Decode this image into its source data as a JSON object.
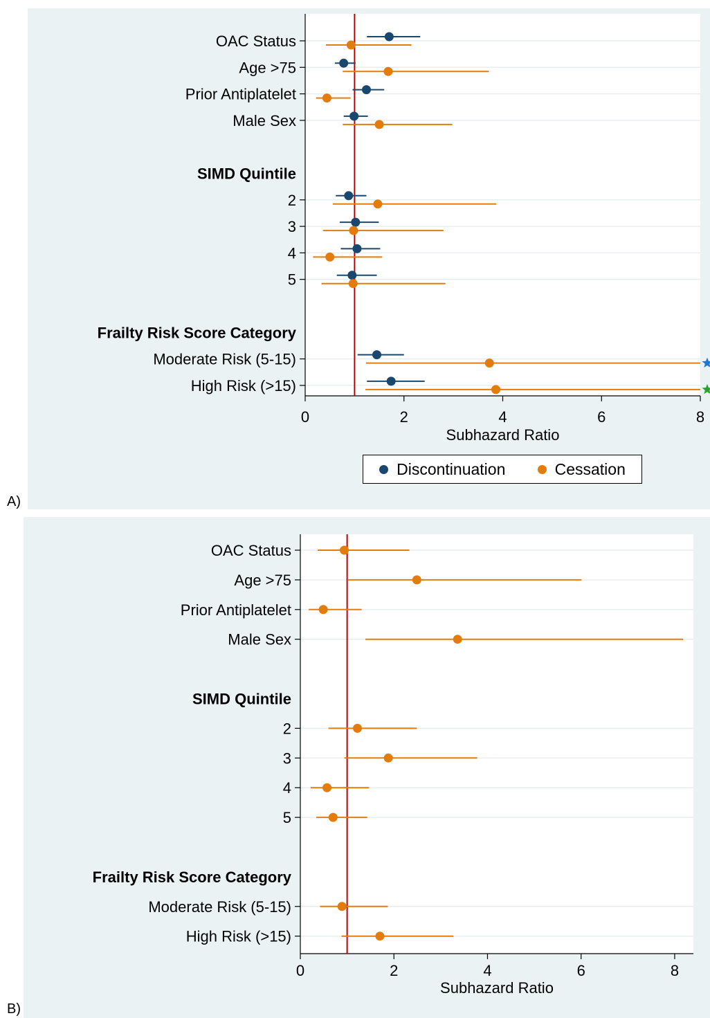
{
  "panels": [
    {
      "panel_label": "A)",
      "legend": {
        "items": [
          {
            "name": "Discontinuation",
            "color": "#1a476f"
          },
          {
            "name": "Cessation",
            "color": "#e37c0c"
          }
        ]
      }
    },
    {
      "panel_label": "B)"
    }
  ],
  "colors": {
    "discontinuation": "#1a476f",
    "cessation": "#e37c0c",
    "reference_line": "#c00000",
    "panel_bg": "#eaf2f3",
    "plot_bg": "#ffffff",
    "star_blue": "#1f77d4",
    "star_green": "#2ca02c"
  },
  "chart_data": [
    {
      "type": "forest",
      "panel": "A)",
      "xlabel": "Subhazard Ratio",
      "ylabel": "",
      "title": "",
      "xlim": [
        0,
        8
      ],
      "x_ticks": [
        "0",
        "2",
        "4",
        "6",
        "8"
      ],
      "reference_line": 1,
      "legend": "bottom",
      "grid": true,
      "rows": [
        {
          "label": "OAC Status",
          "bold": false,
          "tick": true
        },
        {
          "label": "Age >75",
          "bold": false,
          "tick": true
        },
        {
          "label": "Prior Antiplatelet",
          "bold": false,
          "tick": true
        },
        {
          "label": "Male Sex",
          "bold": false,
          "tick": true
        },
        {
          "label": "",
          "bold": false,
          "tick": false
        },
        {
          "label": "SIMD Quintile",
          "bold": true,
          "tick": false
        },
        {
          "label": "2",
          "bold": false,
          "tick": true
        },
        {
          "label": "3",
          "bold": false,
          "tick": true
        },
        {
          "label": "4",
          "bold": false,
          "tick": true
        },
        {
          "label": "5",
          "bold": false,
          "tick": true
        },
        {
          "label": "",
          "bold": false,
          "tick": false
        },
        {
          "label": "Frailty Risk Score Category",
          "bold": true,
          "tick": false
        },
        {
          "label": "Moderate Risk (5-15)",
          "bold": false,
          "tick": true
        },
        {
          "label": "High Risk (>15)",
          "bold": false,
          "tick": true
        }
      ],
      "series": [
        {
          "name": "Discontinuation",
          "color": "#1a476f",
          "offset": -1,
          "points": [
            {
              "row": 0,
              "est": 1.7,
              "lo": 1.25,
              "hi": 2.33
            },
            {
              "row": 1,
              "est": 0.78,
              "lo": 0.6,
              "hi": 1.02
            },
            {
              "row": 2,
              "est": 1.24,
              "lo": 0.96,
              "hi": 1.6
            },
            {
              "row": 3,
              "est": 0.99,
              "lo": 0.78,
              "hi": 1.27
            },
            {
              "row": 6,
              "est": 0.88,
              "lo": 0.62,
              "hi": 1.24
            },
            {
              "row": 7,
              "est": 1.02,
              "lo": 0.7,
              "hi": 1.49
            },
            {
              "row": 8,
              "est": 1.05,
              "lo": 0.72,
              "hi": 1.52
            },
            {
              "row": 9,
              "est": 0.95,
              "lo": 0.64,
              "hi": 1.45
            },
            {
              "row": 12,
              "est": 1.45,
              "lo": 1.06,
              "hi": 2.0
            },
            {
              "row": 13,
              "est": 1.74,
              "lo": 1.25,
              "hi": 2.42
            }
          ]
        },
        {
          "name": "Cessation",
          "color": "#e37c0c",
          "offset": 1,
          "points": [
            {
              "row": 0,
              "est": 0.93,
              "lo": 0.42,
              "hi": 2.15
            },
            {
              "row": 1,
              "est": 1.68,
              "lo": 0.76,
              "hi": 3.72
            },
            {
              "row": 2,
              "est": 0.44,
              "lo": 0.22,
              "hi": 0.92
            },
            {
              "row": 3,
              "est": 1.5,
              "lo": 0.76,
              "hi": 2.98
            },
            {
              "row": 6,
              "est": 1.47,
              "lo": 0.56,
              "hi": 3.87
            },
            {
              "row": 7,
              "est": 0.98,
              "lo": 0.36,
              "hi": 2.8
            },
            {
              "row": 8,
              "est": 0.5,
              "lo": 0.16,
              "hi": 1.56
            },
            {
              "row": 9,
              "est": 0.97,
              "lo": 0.33,
              "hi": 2.84
            },
            {
              "row": 12,
              "est": 3.73,
              "lo": 1.23,
              "hi": 8.0,
              "clipped": true,
              "star": "#1f77d4"
            },
            {
              "row": 13,
              "est": 3.86,
              "lo": 1.22,
              "hi": 8.0,
              "clipped": true,
              "star": "#2ca02c"
            }
          ]
        }
      ]
    },
    {
      "type": "forest",
      "panel": "B)",
      "xlabel": "Subhazard Ratio",
      "ylabel": "",
      "title": "",
      "xlim": [
        0,
        8.4
      ],
      "x_ticks": [
        "0",
        "2",
        "4",
        "6",
        "8"
      ],
      "reference_line": 1,
      "legend": "none",
      "grid": true,
      "rows": [
        {
          "label": "OAC Status",
          "bold": false,
          "tick": true
        },
        {
          "label": "Age >75",
          "bold": false,
          "tick": true
        },
        {
          "label": "Prior Antiplatelet",
          "bold": false,
          "tick": true
        },
        {
          "label": "Male Sex",
          "bold": false,
          "tick": true
        },
        {
          "label": "",
          "bold": false,
          "tick": false
        },
        {
          "label": "SIMD Quintile",
          "bold": true,
          "tick": false
        },
        {
          "label": "2",
          "bold": false,
          "tick": true
        },
        {
          "label": "3",
          "bold": false,
          "tick": true
        },
        {
          "label": "4",
          "bold": false,
          "tick": true
        },
        {
          "label": "5",
          "bold": false,
          "tick": true
        },
        {
          "label": "",
          "bold": false,
          "tick": false
        },
        {
          "label": "Frailty Risk Score Category",
          "bold": true,
          "tick": false
        },
        {
          "label": "Moderate Risk (5-15)",
          "bold": false,
          "tick": true
        },
        {
          "label": "High Risk (>15)",
          "bold": false,
          "tick": true
        }
      ],
      "series": [
        {
          "name": "Cessation",
          "color": "#e37c0c",
          "offset": 0,
          "points": [
            {
              "row": 0,
              "est": 0.94,
              "lo": 0.37,
              "hi": 2.33
            },
            {
              "row": 1,
              "est": 2.49,
              "lo": 1.02,
              "hi": 6.01
            },
            {
              "row": 2,
              "est": 0.49,
              "lo": 0.18,
              "hi": 1.31
            },
            {
              "row": 3,
              "est": 3.36,
              "lo": 1.39,
              "hi": 8.18
            },
            {
              "row": 6,
              "est": 1.22,
              "lo": 0.6,
              "hi": 2.49
            },
            {
              "row": 7,
              "est": 1.88,
              "lo": 0.94,
              "hi": 3.78
            },
            {
              "row": 8,
              "est": 0.57,
              "lo": 0.22,
              "hi": 1.47
            },
            {
              "row": 9,
              "est": 0.7,
              "lo": 0.34,
              "hi": 1.43
            },
            {
              "row": 12,
              "est": 0.89,
              "lo": 0.42,
              "hi": 1.87
            },
            {
              "row": 13,
              "est": 1.7,
              "lo": 0.88,
              "hi": 3.27
            }
          ]
        }
      ]
    }
  ]
}
